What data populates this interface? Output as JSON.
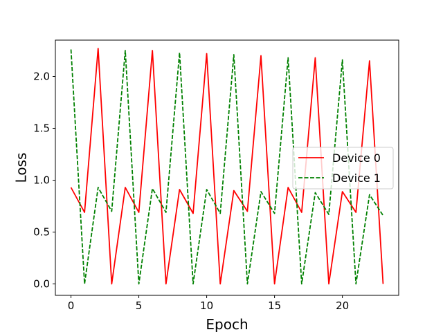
{
  "chart_data": {
    "type": "line",
    "xlabel": "Epoch",
    "ylabel": "Loss",
    "xlim": [
      -1.15,
      24.15
    ],
    "ylim": [
      -0.11,
      2.35
    ],
    "xticks": [
      0,
      5,
      10,
      15,
      20
    ],
    "yticks": [
      0.0,
      0.5,
      1.0,
      1.5,
      2.0
    ],
    "xtick_labels": [
      "0",
      "5",
      "10",
      "15",
      "20"
    ],
    "ytick_labels": [
      "0.0",
      "0.5",
      "1.0",
      "1.5",
      "2.0"
    ],
    "grid": false,
    "legend_position": "center-right",
    "x": [
      0,
      1,
      2,
      3,
      4,
      5,
      6,
      7,
      8,
      9,
      10,
      11,
      12,
      13,
      14,
      15,
      16,
      17,
      18,
      19,
      20,
      21,
      22,
      23
    ],
    "series": [
      {
        "name": "Device 0",
        "color": "#ff0000",
        "linestyle": "solid",
        "values": [
          0.93,
          0.69,
          2.27,
          0.0,
          0.93,
          0.69,
          2.25,
          0.0,
          0.91,
          0.68,
          2.22,
          0.0,
          0.9,
          0.7,
          2.2,
          0.0,
          0.93,
          0.69,
          2.18,
          0.0,
          0.89,
          0.69,
          2.15,
          0.0
        ]
      },
      {
        "name": "Device 1",
        "color": "#008000",
        "linestyle": "dashed",
        "values": [
          2.26,
          0.0,
          0.93,
          0.7,
          2.25,
          0.0,
          0.92,
          0.69,
          2.23,
          0.0,
          0.91,
          0.68,
          2.21,
          0.0,
          0.89,
          0.68,
          2.18,
          0.0,
          0.88,
          0.67,
          2.16,
          0.0,
          0.86,
          0.66
        ]
      }
    ]
  }
}
